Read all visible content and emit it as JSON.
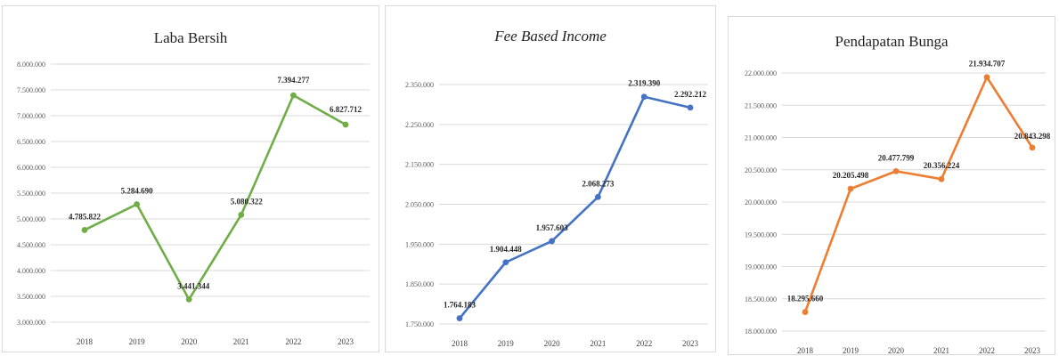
{
  "chart_data": [
    {
      "type": "line",
      "title": "Laba Bersih",
      "title_italic": false,
      "color": "#70ad47",
      "x": [
        "2018",
        "2019",
        "2020",
        "2021",
        "2022",
        "2023"
      ],
      "values": [
        4785822,
        5284690,
        3441344,
        5080322,
        7394277,
        6827712
      ],
      "labels": [
        "4.785.822",
        "5.284.690",
        "3.441.344",
        "5.080.322",
        "7.394.277",
        "6.827.712"
      ],
      "yticks": [
        "3.000.000",
        "3.500.000",
        "4.000.000",
        "4.500.000",
        "5.000.000",
        "5.500.000",
        "6.000.000",
        "6.500.000",
        "7.000.000",
        "7.500.000",
        "8.000.000"
      ],
      "ylim": [
        3000000,
        8000000
      ],
      "grid": true
    },
    {
      "type": "line",
      "title": "Fee Based Income",
      "title_italic": true,
      "color": "#4472c4",
      "x": [
        "2018",
        "2019",
        "2020",
        "2021",
        "2022",
        "2023"
      ],
      "values": [
        1764183,
        1904448,
        1957603,
        2068273,
        2319390,
        2292212
      ],
      "labels": [
        "1.764.183",
        "1.904.448",
        "1.957.603",
        "2.068.273",
        "2.319.390",
        "2.292.212"
      ],
      "yticks": [
        "1.750.000",
        "1.850.000",
        "1.950.000",
        "2.050.000",
        "2.150.000",
        "2.250.000",
        "2.350.000"
      ],
      "ylim": [
        1750000,
        2350000
      ],
      "grid": true
    },
    {
      "type": "line",
      "title": "Pendapatan Bunga",
      "title_italic": false,
      "color": "#ed7d31",
      "x": [
        "2018",
        "2019",
        "2020",
        "2021",
        "2022",
        "2023"
      ],
      "values": [
        18295660,
        20205498,
        20477799,
        20356224,
        21934707,
        20843298
      ],
      "labels": [
        "18.295.660",
        "20.205.498",
        "20.477.799",
        "20.356.224",
        "21.934.707",
        "20.843.298"
      ],
      "yticks": [
        "18.000.000",
        "18.500.000",
        "19.000.000",
        "19.500.000",
        "20.000.000",
        "20.500.000",
        "21.000.000",
        "21.500.000",
        "22.000.000"
      ],
      "ylim": [
        18000000,
        22000000
      ],
      "grid": true
    }
  ]
}
